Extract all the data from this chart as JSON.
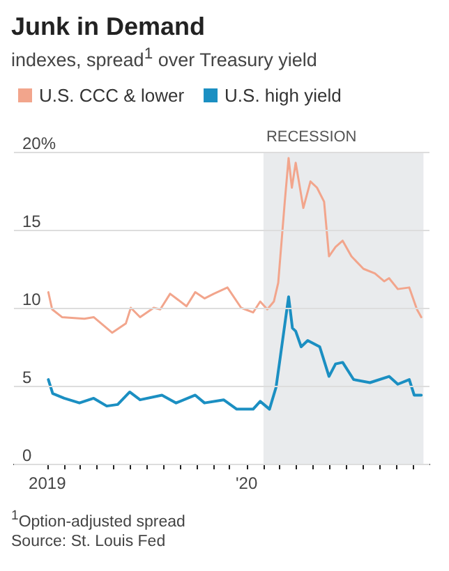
{
  "chart_data": {
    "type": "line",
    "title": "Junk in Demand",
    "subtitle": "indexes, spread$^{1}$ over Treasury yield",
    "legend": "top left",
    "grid": "y",
    "marker": "none",
    "line_style": "solid",
    "xlim": [
      "2018-11-01",
      "2020-12-01"
    ],
    "xticks": [
      {
        "value": "2019-01-01",
        "label": "2019"
      },
      {
        "value": "2019-02-01",
        "label": null
      },
      {
        "value": "2019-03-01",
        "label": null
      },
      {
        "value": "2019-04-01",
        "label": null
      },
      {
        "value": "2019-05-01",
        "label": null
      },
      {
        "value": "2019-06-01",
        "label": null
      },
      {
        "value": "2019-07-01",
        "label": null
      },
      {
        "value": "2019-08-01",
        "label": null
      },
      {
        "value": "2019-09-01",
        "label": null
      },
      {
        "value": "2019-10-01",
        "label": null
      },
      {
        "value": "2019-11-01",
        "label": null
      },
      {
        "value": "2019-12-01",
        "label": null
      },
      {
        "value": "2020-01-01",
        "label": "'20"
      },
      {
        "value": "2020-02-01",
        "label": null
      },
      {
        "value": "2020-03-01",
        "label": null
      },
      {
        "value": "2020-04-01",
        "label": null
      },
      {
        "value": "2020-05-01",
        "label": null
      },
      {
        "value": "2020-06-01",
        "label": null
      },
      {
        "value": "2020-07-01",
        "label": null
      },
      {
        "value": "2020-08-01",
        "label": null
      },
      {
        "value": "2020-09-01",
        "label": null
      },
      {
        "value": "2020-10-01",
        "label": null
      },
      {
        "value": "2020-11-01",
        "label": null
      }
    ],
    "ylim": [
      0,
      20
    ],
    "yticks": [
      0,
      5,
      10,
      15,
      {
        "value": 20,
        "label": "20%"
      }
    ],
    "bands": [
      {
        "axis": "x",
        "from": "2020-02-01",
        "to": "2020-11-20",
        "label": "RECESSION",
        "color": "#e9ebed"
      }
    ],
    "series": [
      {
        "name": "U.S. CCC & lower",
        "color": "#f2a58c",
        "x": [
          "2019-01-03",
          "2019-01-10",
          "2019-01-28",
          "2019-03-10",
          "2019-03-27",
          "2019-04-30",
          "2019-05-25",
          "2019-06-03",
          "2019-06-20",
          "2019-07-15",
          "2019-07-27",
          "2019-08-14",
          "2019-09-13",
          "2019-09-29",
          "2019-10-16",
          "2019-11-02",
          "2019-11-27",
          "2019-12-22",
          "2020-01-13",
          "2020-01-26",
          "2020-02-08",
          "2020-02-20",
          "2020-02-28",
          "2020-03-11",
          "2020-03-18",
          "2020-03-24",
          "2020-03-31",
          "2020-04-14",
          "2020-04-27",
          "2020-05-09",
          "2020-05-22",
          "2020-05-31",
          "2020-06-12",
          "2020-06-25",
          "2020-07-11",
          "2020-08-02",
          "2020-08-23",
          "2020-09-09",
          "2020-09-18",
          "2020-10-04",
          "2020-10-25",
          "2020-11-08",
          "2020-11-16"
        ],
        "values": [
          11.0,
          9.9,
          9.4,
          9.3,
          9.4,
          8.4,
          9.0,
          10.0,
          9.4,
          10.0,
          9.9,
          10.9,
          10.1,
          11.0,
          10.6,
          10.9,
          11.3,
          10.0,
          9.7,
          10.4,
          9.9,
          10.4,
          11.6,
          16.8,
          19.6,
          17.7,
          19.3,
          16.4,
          18.1,
          17.7,
          16.8,
          13.3,
          13.9,
          14.3,
          13.3,
          12.5,
          12.2,
          11.7,
          11.9,
          11.2,
          11.3,
          9.9,
          9.4
        ]
      },
      {
        "name": "U.S. high yield",
        "color": "#1b8fc2",
        "x": [
          "2019-01-03",
          "2019-01-11",
          "2019-02-01",
          "2019-03-01",
          "2019-03-27",
          "2019-04-20",
          "2019-05-10",
          "2019-06-01",
          "2019-06-20",
          "2019-07-30",
          "2019-08-25",
          "2019-09-29",
          "2019-10-16",
          "2019-11-20",
          "2019-12-14",
          "2020-01-13",
          "2020-01-26",
          "2020-02-12",
          "2020-02-24",
          "2020-03-03",
          "2020-03-18",
          "2020-03-25",
          "2020-03-31",
          "2020-04-10",
          "2020-04-22",
          "2020-05-14",
          "2020-05-31",
          "2020-06-12",
          "2020-06-25",
          "2020-07-15",
          "2020-08-14",
          "2020-09-18",
          "2020-10-04",
          "2020-10-25",
          "2020-11-03",
          "2020-11-16"
        ],
        "values": [
          5.4,
          4.5,
          4.2,
          3.9,
          4.2,
          3.7,
          3.8,
          4.6,
          4.1,
          4.4,
          3.9,
          4.4,
          3.9,
          4.1,
          3.5,
          3.5,
          4.0,
          3.5,
          4.9,
          6.9,
          10.7,
          8.7,
          8.5,
          7.5,
          7.9,
          7.5,
          5.6,
          6.4,
          6.5,
          5.4,
          5.2,
          5.6,
          5.1,
          5.4,
          4.4,
          4.4
        ]
      }
    ],
    "annotations": [
      "$^{1}$Option-adjusted spread",
      "Source: St. Louis Fed"
    ]
  }
}
